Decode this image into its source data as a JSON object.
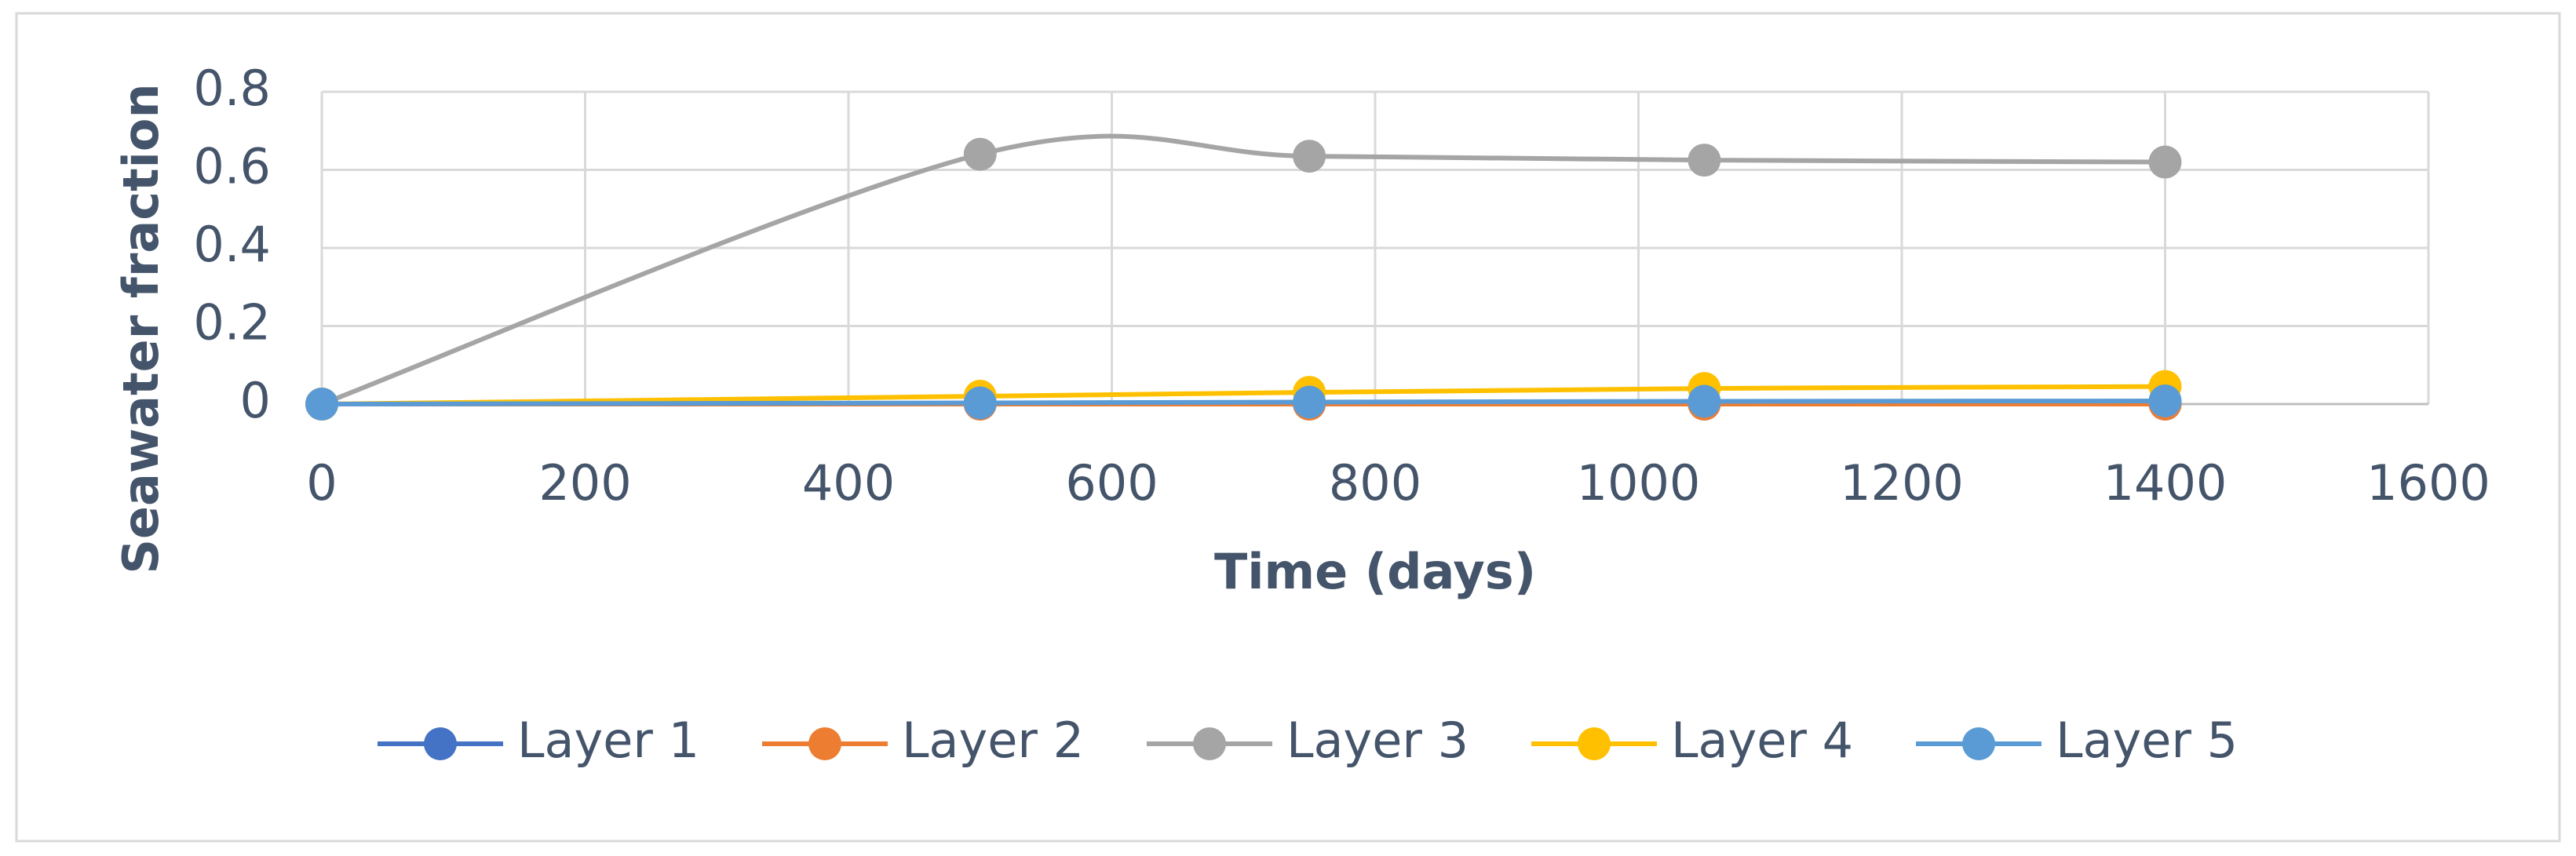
{
  "chart_data": {
    "type": "line",
    "smooth": true,
    "grid": true,
    "legend": "bottom",
    "xlabel": "Time (days)",
    "ylabel": "Seawater fraction",
    "x": [
      0,
      500,
      750,
      1050,
      1400
    ],
    "xlim": [
      0,
      1600
    ],
    "xticks": [
      0,
      200,
      400,
      600,
      800,
      1000,
      1200,
      1400,
      1600
    ],
    "ylim": [
      0,
      0.8
    ],
    "yticks": [
      0,
      0.2,
      0.4,
      0.6,
      0.8
    ],
    "series": [
      {
        "name": "Layer 1",
        "color": "#4472c4",
        "values": [
          0,
          0,
          0,
          0,
          0
        ]
      },
      {
        "name": "Layer 2",
        "color": "#ed7d31",
        "values": [
          0,
          0,
          0,
          0,
          0
        ]
      },
      {
        "name": "Layer 3",
        "color": "#a5a5a5",
        "values": [
          0,
          0.64,
          0.635,
          0.625,
          0.62
        ]
      },
      {
        "name": "Layer 4",
        "color": "#ffc000",
        "values": [
          0,
          0.02,
          0.03,
          0.04,
          0.045
        ]
      },
      {
        "name": "Layer 5",
        "color": "#5b9bd5",
        "values": [
          0,
          0.003,
          0.005,
          0.007,
          0.008
        ]
      }
    ]
  }
}
